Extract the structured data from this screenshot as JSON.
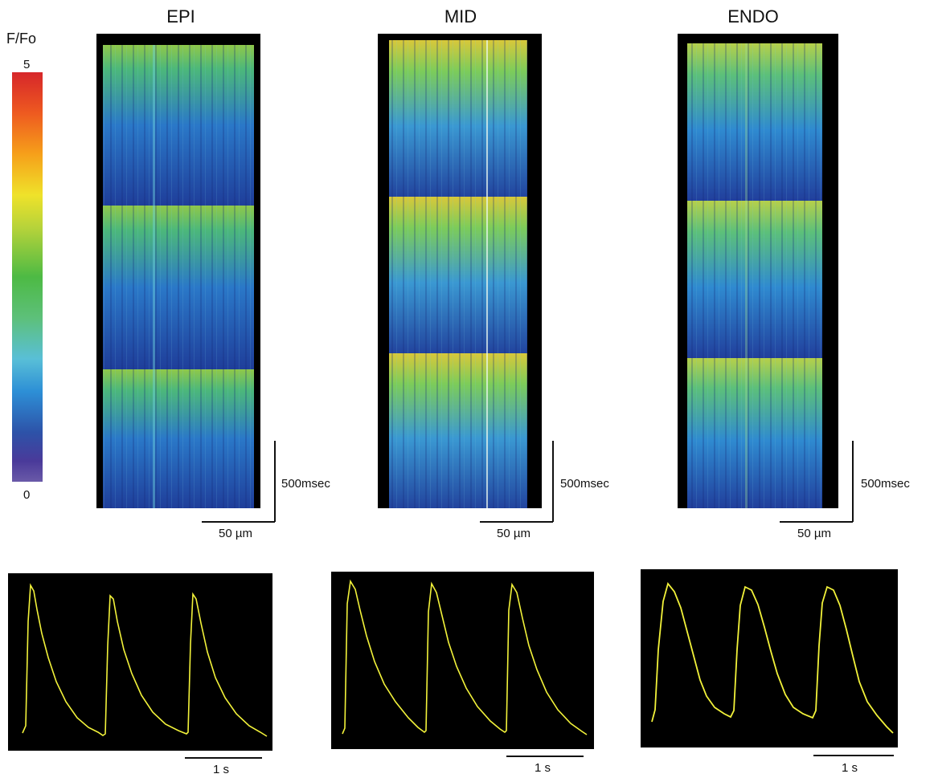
{
  "colorbar": {
    "label": "F/Fo",
    "max": "5",
    "min": "0"
  },
  "panels": [
    {
      "title": "EPI",
      "time_scale": "500msec",
      "space_scale": "50 µm",
      "trace_scale": "1 s"
    },
    {
      "title": "MID",
      "time_scale": "500msec",
      "space_scale": "50 µm",
      "trace_scale": "1 s"
    },
    {
      "title": "ENDO",
      "time_scale": "500msec",
      "space_scale": "50 µm",
      "trace_scale": "1 s"
    }
  ],
  "colors": {
    "trace": "#f2f23a",
    "background": "#000000"
  }
}
